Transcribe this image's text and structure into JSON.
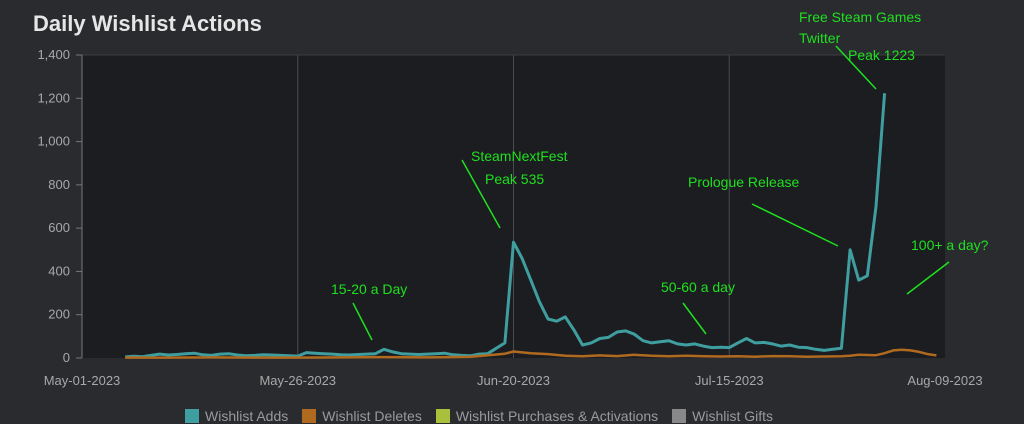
{
  "title": "Daily Wishlist Actions",
  "colors": {
    "adds": "#3f9ea0",
    "deletes": "#b06a1f",
    "purchases": "#a8c03a",
    "gifts": "#888888",
    "annotation": "#1fe01f"
  },
  "chart_data": {
    "type": "line",
    "title": "Daily Wishlist Actions",
    "xlabel": "",
    "ylabel": "",
    "ylim": [
      0,
      1400
    ],
    "yticks": [
      0,
      200,
      400,
      600,
      800,
      1000,
      1200,
      1400
    ],
    "ytick_labels": [
      "0",
      "200",
      "400",
      "600",
      "800",
      "1,000",
      "1,200",
      "1,400"
    ],
    "xtick_labels": [
      "May-01-2023",
      "May-26-2023",
      "Jun-20-2023",
      "Jul-15-2023",
      "Aug-09-2023"
    ],
    "xtick_days": [
      0,
      25,
      50,
      75,
      100
    ],
    "grid": true,
    "legend_position": "bottom",
    "series": [
      {
        "name": "Wishlist Adds",
        "color": "#3f9ea0",
        "x": [
          5,
          6,
          7,
          8,
          9,
          10,
          11,
          12,
          13,
          14,
          15,
          16,
          17,
          18,
          19,
          20,
          21,
          22,
          23,
          24,
          25,
          26,
          27,
          28,
          29,
          30,
          31,
          32,
          33,
          34,
          35,
          36,
          37,
          38,
          39,
          40,
          41,
          42,
          43,
          44,
          45,
          46,
          47,
          48,
          49,
          50,
          51,
          52,
          53,
          54,
          55,
          56,
          57,
          58,
          59,
          60,
          61,
          62,
          63,
          64,
          65,
          66,
          67,
          68,
          69,
          70,
          71,
          72,
          73,
          74,
          75,
          76,
          77,
          78,
          79,
          80,
          81,
          82,
          83,
          84,
          85,
          86,
          87,
          88,
          89,
          90,
          91,
          92,
          93
        ],
        "values": [
          5,
          8,
          6,
          12,
          18,
          14,
          16,
          20,
          22,
          15,
          12,
          18,
          20,
          14,
          10,
          12,
          15,
          14,
          12,
          10,
          9,
          25,
          22,
          20,
          18,
          15,
          14,
          16,
          18,
          20,
          40,
          28,
          20,
          18,
          16,
          18,
          20,
          22,
          15,
          12,
          10,
          18,
          20,
          45,
          70,
          535,
          460,
          360,
          260,
          180,
          170,
          190,
          130,
          60,
          70,
          90,
          95,
          120,
          125,
          110,
          80,
          70,
          75,
          80,
          65,
          60,
          65,
          55,
          48,
          50,
          48,
          70,
          90,
          70,
          72,
          65,
          55,
          60,
          50,
          48,
          40,
          35,
          40,
          45,
          500,
          360,
          380,
          700,
          1223
        ]
      },
      {
        "name": "Wishlist Deletes",
        "color": "#b06a1f",
        "x": [
          5,
          10,
          15,
          20,
          25,
          30,
          35,
          40,
          45,
          49,
          50,
          52,
          54,
          56,
          58,
          60,
          62,
          64,
          66,
          68,
          70,
          72,
          74,
          76,
          78,
          80,
          82,
          84,
          86,
          88,
          89,
          90,
          91,
          92,
          93,
          94,
          95,
          96,
          97,
          98,
          99
        ],
        "values": [
          2,
          2,
          3,
          2,
          2,
          3,
          4,
          3,
          5,
          20,
          30,
          22,
          18,
          10,
          8,
          12,
          9,
          15,
          10,
          8,
          10,
          8,
          7,
          8,
          6,
          9,
          8,
          6,
          7,
          8,
          10,
          15,
          14,
          13,
          22,
          35,
          38,
          35,
          28,
          18,
          12
        ]
      },
      {
        "name": "Wishlist Purchases & Activations",
        "color": "#a8c03a",
        "x": [],
        "values": []
      },
      {
        "name": "Wishlist Gifts",
        "color": "#888888",
        "x": [],
        "values": []
      }
    ],
    "annotations": [
      {
        "lines": [
          "15-20 a Day"
        ]
      },
      {
        "lines": [
          "SteamNextFest",
          "Peak 535"
        ]
      },
      {
        "lines": [
          "50-60 a day"
        ]
      },
      {
        "lines": [
          "Prologue Release"
        ]
      },
      {
        "lines": [
          "Free Steam Games",
          "Twitter"
        ]
      },
      {
        "lines": [
          "Peak 1223"
        ]
      },
      {
        "lines": [
          "100+ a day?"
        ]
      }
    ]
  },
  "legend": {
    "items": [
      {
        "label": "Wishlist Adds"
      },
      {
        "label": "Wishlist Deletes"
      },
      {
        "label": "Wishlist Purchases & Activations"
      },
      {
        "label": "Wishlist Gifts"
      }
    ]
  }
}
